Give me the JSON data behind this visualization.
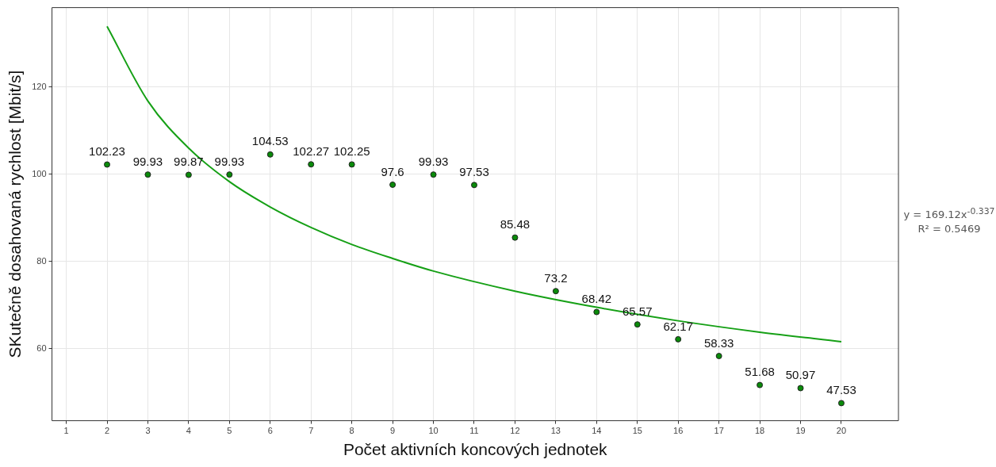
{
  "chart_data": {
    "type": "scatter",
    "xlabel": "Počet aktivních koncových jednotek",
    "ylabel": "SKutečně dosahovaná rychlost [Mbit/s]",
    "x": [
      2,
      3,
      4,
      5,
      6,
      7,
      8,
      9,
      10,
      11,
      12,
      13,
      14,
      15,
      16,
      17,
      18,
      19,
      20
    ],
    "series": [
      {
        "color": "#0a8a0a",
        "marker": "circle",
        "values": [
          102.23,
          99.93,
          99.87,
          99.93,
          104.53,
          102.27,
          102.25,
          97.6,
          99.93,
          97.53,
          85.48,
          73.2,
          68.42,
          65.57,
          62.17,
          58.33,
          51.68,
          50.97,
          47.53
        ],
        "value_labels": [
          "102.23",
          "99.93",
          "99.87",
          "99.93",
          "104.53",
          "102.27",
          "102.25",
          "97.6",
          "99.93",
          "97.53",
          "85.48",
          "73.2",
          "68.42",
          "65.57",
          "62.17",
          "58.33",
          "51.68",
          "50.97",
          "47.53"
        ]
      },
      {
        "type": "line",
        "color": "#16a016",
        "marker": "none",
        "x": [
          2,
          3,
          4,
          5,
          6,
          7,
          8,
          9,
          10,
          12,
          14,
          16,
          18,
          20
        ],
        "values": [
          133.9,
          116.8,
          106.0,
          98.3,
          92.5,
          87.8,
          83.9,
          80.7,
          77.8,
          73.2,
          69.5,
          66.4,
          63.8,
          61.6
        ]
      }
    ],
    "xlim": [
      0.65,
      21.4
    ],
    "xticks": [
      1,
      2,
      3,
      4,
      5,
      6,
      7,
      8,
      9,
      10,
      11,
      12,
      13,
      14,
      15,
      16,
      17,
      18,
      19,
      20
    ],
    "ylim": [
      43.5,
      138.2
    ],
    "yticks": [
      60,
      80,
      100,
      120
    ],
    "grid": true,
    "annotations": [
      "y = 169.12x$^{-0.337}$",
      "R² = 0.5469"
    ]
  }
}
